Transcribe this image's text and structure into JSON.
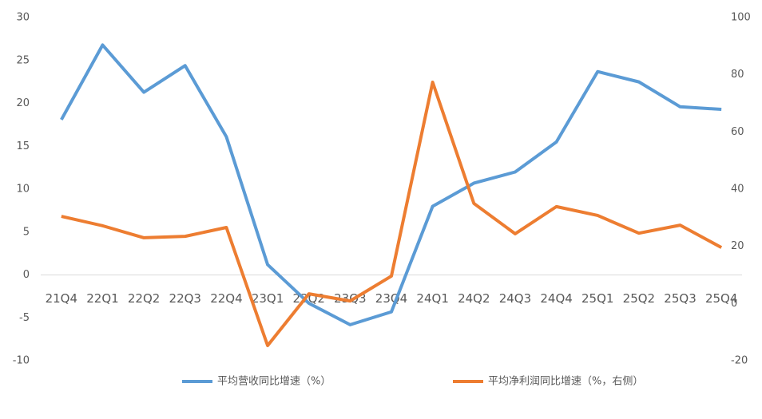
{
  "chart_data": {
    "type": "line",
    "categories": [
      "21Q4",
      "22Q1",
      "22Q2",
      "22Q3",
      "22Q4",
      "23Q1",
      "23Q2",
      "23Q3",
      "23Q4",
      "24Q1",
      "24Q2",
      "24Q3",
      "24Q4",
      "25Q1",
      "25Q2",
      "25Q3",
      "25Q4"
    ],
    "series": [
      {
        "name": "平均营收同比增速（%）",
        "color": "#5b9bd5",
        "values": [
          18.1,
          26.8,
          21.3,
          24.4,
          16.1,
          1.2,
          -3.3,
          -5.8,
          -4.3,
          8.0,
          10.7,
          12.0,
          15.5,
          23.7,
          22.5,
          19.6,
          19.3
        ]
      },
      {
        "name": "平均净利润同比增速（%，右侧）",
        "color": "#ed7d31",
        "axis": "y2",
        "values": [
          30.5,
          27.2,
          23.0,
          23.5,
          26.6,
          -14.7,
          3.4,
          0.9,
          9.6,
          77.4,
          35.0,
          24.4,
          33.9,
          30.8,
          24.6,
          27.4,
          19.6
        ]
      }
    ],
    "ylim": [
      -10,
      30
    ],
    "yticks": [
      -10,
      -5,
      0,
      5,
      10,
      15,
      20,
      25,
      30
    ],
    "y2lim": [
      -20,
      100
    ],
    "y2ticks": [
      -20,
      0,
      20,
      40,
      60,
      80,
      100
    ],
    "legend": "bottom"
  }
}
